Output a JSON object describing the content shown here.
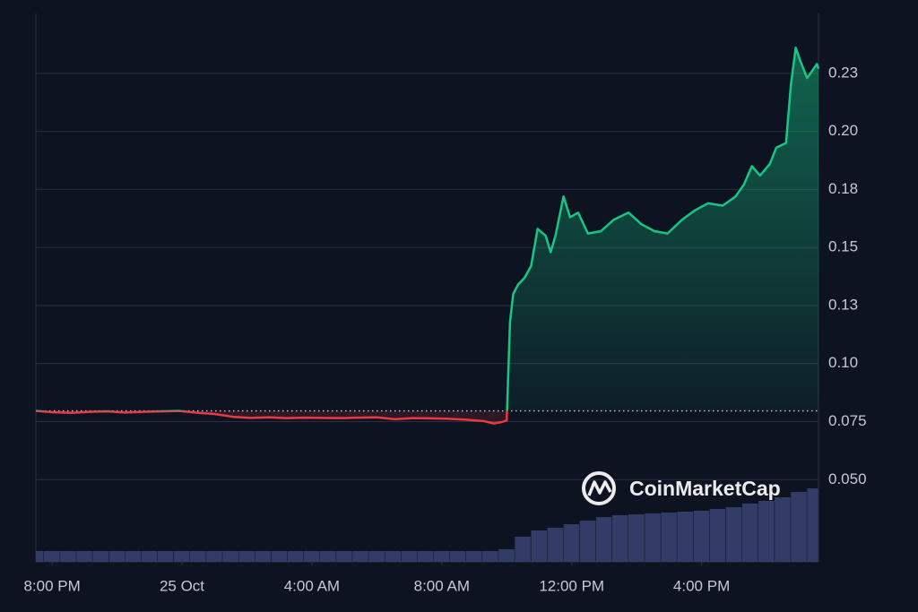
{
  "chart_data": {
    "type": "line",
    "x": [
      -0.5,
      0.05,
      0.6,
      1.15,
      1.7,
      2.25,
      2.8,
      3.35,
      3.9,
      4.5,
      5.0,
      5.6,
      6.1,
      6.7,
      7.2,
      7.8,
      8.3,
      8.9,
      9.4,
      10.0,
      10.55,
      11.1,
      11.65,
      12.2,
      12.75,
      13.3,
      13.6,
      13.85,
      14.0,
      14.1,
      14.2,
      14.35,
      14.55,
      14.75,
      14.95,
      15.2,
      15.35,
      15.5,
      15.75,
      15.95,
      16.2,
      16.5,
      16.9,
      17.3,
      17.75,
      18.15,
      18.55,
      18.95,
      19.4,
      19.8,
      20.2,
      20.65,
      21.05,
      21.3,
      21.55,
      21.8,
      22.1,
      22.3,
      22.6,
      22.75,
      22.9,
      23.05,
      23.25,
      23.4,
      23.55,
      23.6
    ],
    "values": [
      0.0796,
      0.079,
      0.0788,
      0.0792,
      0.0794,
      0.0789,
      0.0792,
      0.0794,
      0.0796,
      0.0788,
      0.0783,
      0.077,
      0.0766,
      0.0768,
      0.0765,
      0.0767,
      0.0766,
      0.0765,
      0.0767,
      0.0768,
      0.076,
      0.0765,
      0.0764,
      0.0762,
      0.0758,
      0.0752,
      0.0742,
      0.0748,
      0.0755,
      0.118,
      0.13,
      0.134,
      0.137,
      0.142,
      0.158,
      0.155,
      0.148,
      0.155,
      0.172,
      0.163,
      0.165,
      0.156,
      0.157,
      0.162,
      0.165,
      0.16,
      0.157,
      0.156,
      0.162,
      0.166,
      0.169,
      0.168,
      0.172,
      0.177,
      0.185,
      0.181,
      0.186,
      0.193,
      0.195,
      0.22,
      0.236,
      0.23,
      0.223,
      0.226,
      0.229,
      0.227
    ],
    "baseline": 0.0796,
    "colors": {
      "up": "#16c784",
      "down": "#ea3943"
    },
    "xlim": [
      -0.5,
      23.6
    ],
    "xticks": [
      {
        "value": 0,
        "label": "8:00 PM"
      },
      {
        "value": 4,
        "label": "25 Oct"
      },
      {
        "value": 8,
        "label": "4:00 AM"
      },
      {
        "value": 12,
        "label": "8:00 AM"
      },
      {
        "value": 16,
        "label": "12:00 PM"
      },
      {
        "value": 20,
        "label": "4:00 PM"
      }
    ],
    "ylim": [
      0.0146,
      0.2508
    ],
    "yticks": [
      {
        "value": 0.05,
        "label": "0.050"
      },
      0.075,
      {
        "value": 0.1,
        "label": "0.10"
      },
      {
        "value": 0.125,
        "label": "0.13"
      },
      0.15,
      {
        "value": 0.175,
        "label": "0.18"
      },
      {
        "value": 0.2,
        "label": "0.20"
      },
      {
        "value": 0.225,
        "label": "0.23"
      }
    ],
    "grid": true,
    "volume": {
      "color": "#323c66",
      "x": [
        -0.5,
        0,
        0.5,
        1,
        1.5,
        2,
        2.5,
        3,
        3.5,
        4,
        4.5,
        5,
        5.5,
        6,
        6.5,
        7,
        7.5,
        8,
        8.5,
        9,
        9.5,
        10,
        10.5,
        11,
        11.5,
        12,
        12.5,
        13,
        13.5,
        14,
        14.5,
        15,
        15.5,
        16,
        16.5,
        17,
        17.5,
        18,
        18.5,
        19,
        19.5,
        20,
        20.5,
        21,
        21.5,
        22,
        22.5,
        23,
        23.5
      ],
      "values": [
        12,
        12,
        12,
        12,
        12,
        12,
        12,
        12,
        12,
        12,
        12,
        12,
        12,
        12,
        12,
        12,
        12,
        12,
        12,
        12,
        12,
        12,
        12,
        12,
        12,
        12,
        12,
        12,
        12,
        14,
        28,
        35,
        38,
        42,
        46,
        50,
        52,
        53,
        54,
        55,
        56,
        57,
        59,
        61,
        65,
        68,
        72,
        78,
        82
      ],
      "y2lim": [
        0,
        612
      ]
    },
    "watermark": "CoinMarketCap"
  }
}
